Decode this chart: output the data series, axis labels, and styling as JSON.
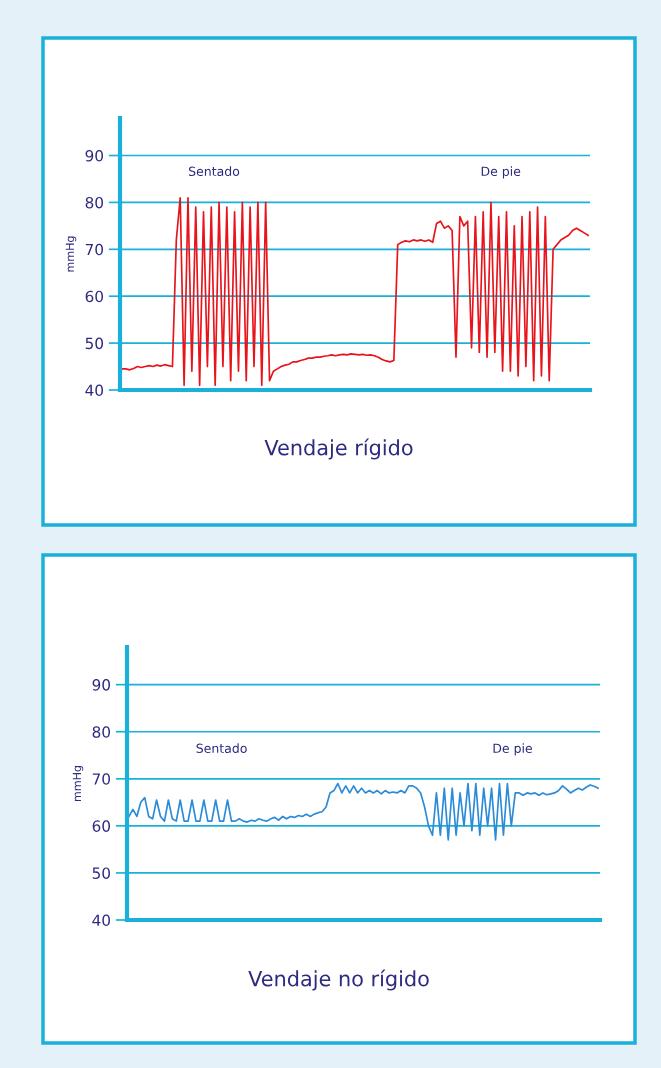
{
  "chart_data": [
    {
      "type": "line",
      "title": "Vendaje rígido",
      "ylabel": "mmHg",
      "annotations": [
        "Sentado",
        "De pie"
      ],
      "categories": [
        null,
        null,
        null,
        null,
        null,
        null,
        null,
        null,
        null,
        null,
        null,
        null,
        null,
        null,
        null,
        null,
        null,
        null,
        null,
        null,
        null,
        null,
        null,
        null,
        null,
        null,
        null,
        null,
        null,
        null,
        null,
        null,
        null,
        null,
        null,
        null,
        null,
        null,
        null,
        null,
        null,
        null,
        null,
        null,
        null,
        null,
        null,
        null,
        null,
        null,
        null,
        null,
        null,
        null,
        null,
        null,
        null,
        null,
        null,
        null,
        null,
        null,
        null,
        null,
        null,
        null,
        null,
        null,
        null,
        null,
        null,
        null,
        null,
        null,
        null,
        null,
        null,
        null,
        null,
        null,
        null,
        null,
        null,
        null,
        null,
        null,
        null,
        null,
        null,
        null,
        null,
        null,
        null,
        null,
        null,
        null,
        null,
        null,
        null,
        null,
        null,
        null,
        null,
        null,
        null,
        null,
        null,
        null,
        null,
        null,
        null,
        null,
        null,
        null,
        null,
        null,
        null,
        null,
        null,
        null,
        null
      ],
      "series": [
        {
          "color": "#e8141c",
          "values": [
            44.5,
            44.5,
            44.3,
            44.6,
            45,
            44.8,
            45,
            45.2,
            45,
            45.3,
            45.1,
            45.4,
            45.2,
            45,
            72,
            81,
            41,
            81,
            44,
            79,
            41,
            78,
            45,
            79,
            41,
            80,
            45,
            79,
            42,
            78,
            44,
            80,
            42,
            79,
            45,
            80,
            41,
            80,
            42,
            44,
            44.5,
            45,
            45.3,
            45.5,
            46,
            46,
            46.3,
            46.5,
            46.8,
            46.8,
            47,
            47,
            47.2,
            47.3,
            47.5,
            47.3,
            47.5,
            47.6,
            47.5,
            47.7,
            47.6,
            47.5,
            47.6,
            47.4,
            47.5,
            47.3,
            47,
            46.5,
            46.2,
            46,
            46.3,
            71,
            71.5,
            71.8,
            71.6,
            72,
            71.8,
            72,
            71.7,
            72,
            71.5,
            75.5,
            76,
            74.5,
            75,
            74,
            47,
            77,
            75,
            76,
            49,
            77,
            48,
            78,
            47,
            80,
            48,
            77,
            44,
            78,
            44,
            75,
            43,
            77,
            45,
            78,
            42,
            79,
            43,
            77,
            42,
            70,
            71,
            72,
            72.5,
            73,
            74,
            74.5,
            74,
            73.5,
            73
          ]
        }
      ],
      "ylim": [
        40,
        98
      ],
      "yticks": [
        40,
        50,
        60,
        70,
        80,
        90
      ],
      "grid": "y",
      "tick_labels": "y",
      "marker": "none",
      "line_style": "solid"
    },
    {
      "type": "line",
      "title": "Vendaje no rígido",
      "ylabel": "mmHg",
      "annotations": [
        "Sentado",
        "De pie"
      ],
      "categories": [
        null,
        null,
        null,
        null,
        null,
        null,
        null,
        null,
        null,
        null,
        null,
        null,
        null,
        null,
        null,
        null,
        null,
        null,
        null,
        null,
        null,
        null,
        null,
        null,
        null,
        null,
        null,
        null,
        null,
        null,
        null,
        null,
        null,
        null,
        null,
        null,
        null,
        null,
        null,
        null,
        null,
        null,
        null,
        null,
        null,
        null,
        null,
        null,
        null,
        null,
        null,
        null,
        null,
        null,
        null,
        null,
        null,
        null,
        null,
        null,
        null,
        null,
        null,
        null,
        null,
        null,
        null,
        null,
        null,
        null,
        null,
        null,
        null,
        null,
        null,
        null,
        null,
        null,
        null,
        null,
        null,
        null,
        null,
        null,
        null,
        null,
        null,
        null,
        null,
        null,
        null,
        null,
        null,
        null,
        null,
        null,
        null,
        null,
        null,
        null,
        null,
        null,
        null,
        null,
        null,
        null,
        null,
        null,
        null,
        null,
        null,
        null,
        null,
        null,
        null,
        null,
        null,
        null,
        null,
        null
      ],
      "series": [
        {
          "color": "#2a8bd8",
          "values": [
            62,
            63.5,
            62,
            65,
            66,
            62,
            61.5,
            65.5,
            62,
            61,
            65.5,
            61.5,
            61,
            65.5,
            61,
            61,
            65.5,
            61,
            61,
            65.5,
            61,
            61,
            65.5,
            61,
            61,
            65.5,
            61,
            61,
            61.5,
            61,
            60.8,
            61.2,
            61,
            61.5,
            61.2,
            61,
            61.5,
            61.8,
            61.2,
            62,
            61.5,
            62,
            61.8,
            62.2,
            62,
            62.5,
            62,
            62.5,
            62.8,
            63,
            64,
            67,
            67.5,
            69,
            67,
            68.5,
            67,
            68.5,
            67,
            68,
            67,
            67.5,
            67,
            67.5,
            66.8,
            67.5,
            67,
            67.2,
            67,
            67.5,
            67,
            68.5,
            68.5,
            68,
            67,
            64,
            60,
            58,
            67,
            58,
            68,
            57,
            68,
            58,
            67,
            60,
            69,
            59,
            69,
            58,
            68,
            60,
            68,
            57,
            69,
            58,
            69,
            60,
            67,
            67,
            66.5,
            67,
            66.8,
            67,
            66.5,
            67,
            66.6,
            66.8,
            67,
            67.5,
            68.5,
            67.8,
            67,
            67.5,
            68,
            67.6,
            68.2,
            68.7,
            68.4,
            68
          ]
        }
      ],
      "ylim": [
        40,
        98
      ],
      "yticks": [
        40,
        50,
        60,
        70,
        80,
        90
      ],
      "grid": "y",
      "tick_labels": "y",
      "marker": "none",
      "line_style": "solid"
    }
  ]
}
